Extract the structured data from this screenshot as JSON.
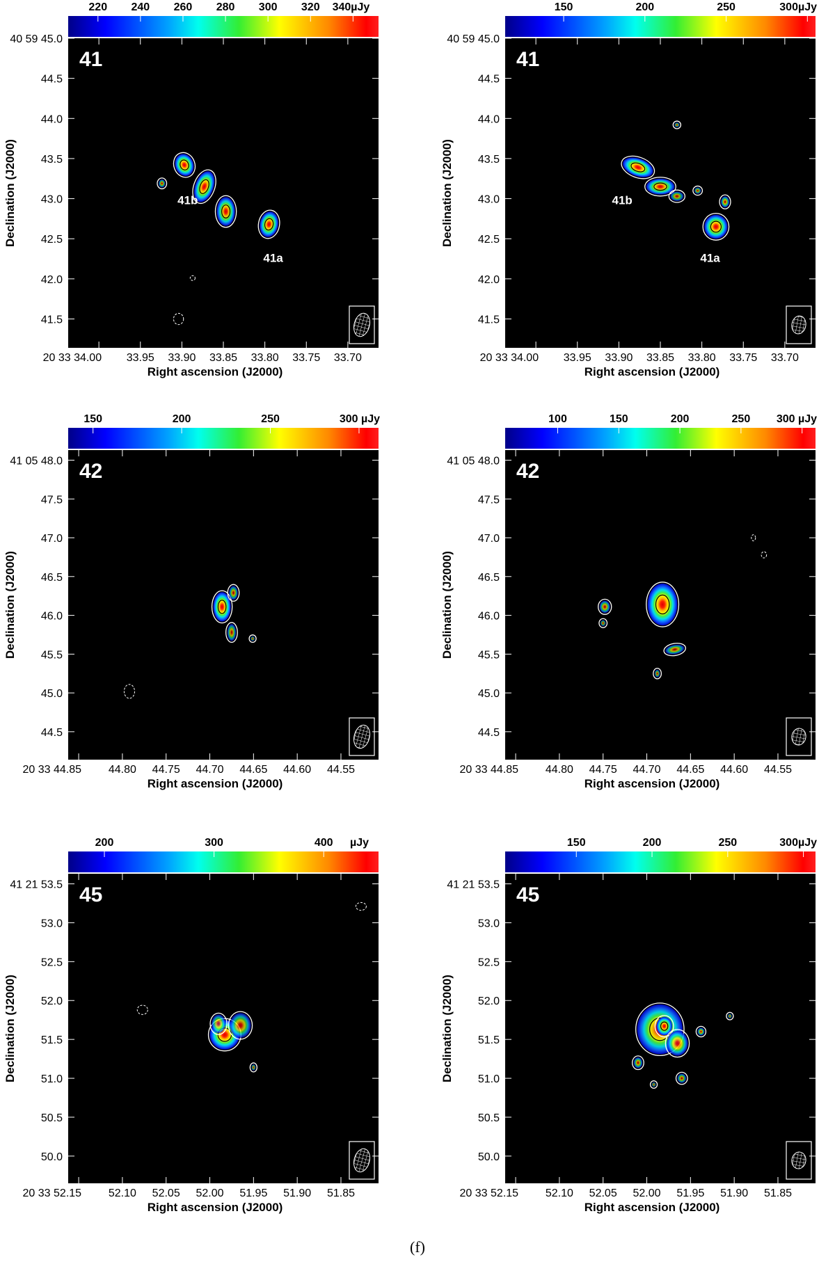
{
  "caption": "(f)",
  "colors": {
    "background": "#000000",
    "contour": "#ffffff",
    "negative_contour": "#ffffff",
    "inner_contour": "#000000"
  },
  "chart_data": [
    {
      "type": "heatmap",
      "panel": "41-left",
      "label": "41",
      "xlabel": "Right ascension (J2000)",
      "ylabel": "Declination (J2000)",
      "x_ticks": [
        "20 33 34.00",
        "33.95",
        "33.90",
        "33.85",
        "33.80",
        "33.75",
        "33.70"
      ],
      "x_values": [
        34.0,
        33.95,
        33.9,
        33.85,
        33.8,
        33.75,
        33.7
      ],
      "xlim": [
        34.037,
        33.663
      ],
      "y_ticks": [
        "40 59 45.0",
        "44.5",
        "44.0",
        "43.5",
        "43.0",
        "42.5",
        "42.0",
        "41.5"
      ],
      "y_values": [
        45.0,
        44.5,
        44.0,
        43.5,
        43.0,
        42.5,
        42.0,
        41.5
      ],
      "ylim": [
        41.14,
        45.0
      ],
      "colorbar": {
        "ticks": [
          "220",
          "240",
          "260",
          "280",
          "300",
          "320",
          "340µJy"
        ],
        "values": [
          220,
          240,
          260,
          280,
          300,
          320,
          340
        ],
        "range": [
          206,
          352
        ]
      },
      "sources": [
        {
          "ra": 33.897,
          "dec": 43.42,
          "rx": 0.011,
          "ry": 0.14,
          "peak": 0.97,
          "rot": -20
        },
        {
          "ra": 33.873,
          "dec": 43.15,
          "rx": 0.011,
          "ry": 0.2,
          "peak": 0.93,
          "rot": 20
        },
        {
          "ra": 33.847,
          "dec": 42.84,
          "rx": 0.011,
          "ry": 0.18,
          "peak": 0.85,
          "rot": 0
        },
        {
          "ra": 33.795,
          "dec": 42.68,
          "rx": 0.011,
          "ry": 0.16,
          "peak": 0.92,
          "rot": 10
        },
        {
          "ra": 33.924,
          "dec": 43.19,
          "rx": 0.004,
          "ry": 0.05,
          "peak": 0.35,
          "rot": 0
        }
      ],
      "annotations": [
        {
          "text": "41b",
          "ra": 33.893,
          "dec": 42.93
        },
        {
          "text": "41a",
          "ra": 33.79,
          "dec": 42.21
        }
      ],
      "negative_contours": [
        {
          "ra": 33.904,
          "dec": 41.5,
          "rx": 0.006,
          "ry": 0.07
        },
        {
          "ra": 33.887,
          "dec": 42.01,
          "rx": 0.003,
          "ry": 0.03
        }
      ],
      "beam": {
        "rx": 11,
        "ry": 17,
        "rot": 15
      }
    },
    {
      "type": "heatmap",
      "panel": "41-right",
      "label": "41",
      "xlabel": "Right ascension (J2000)",
      "ylabel": "Declination (J2000)",
      "x_ticks": [
        "20 33 34.00",
        "33.95",
        "33.90",
        "33.85",
        "33.80",
        "33.75",
        "33.70"
      ],
      "x_values": [
        34.0,
        33.95,
        33.9,
        33.85,
        33.8,
        33.75,
        33.7
      ],
      "xlim": [
        34.037,
        33.663
      ],
      "y_ticks": [
        "40 59 45.0",
        "44.5",
        "44.0",
        "43.5",
        "43.0",
        "42.5",
        "42.0",
        "41.5"
      ],
      "y_values": [
        45.0,
        44.5,
        44.0,
        43.5,
        43.0,
        42.5,
        42.0,
        41.5
      ],
      "ylim": [
        41.14,
        45.0
      ],
      "colorbar": {
        "ticks": [
          "150",
          "200",
          "250",
          "300µJy"
        ],
        "values": [
          150,
          200,
          250,
          300
        ],
        "range": [
          114,
          305
        ]
      },
      "sources": [
        {
          "ra": 33.877,
          "dec": 43.39,
          "rx": 0.019,
          "ry": 0.11,
          "peak": 1.0,
          "rot": 20
        },
        {
          "ra": 33.85,
          "dec": 43.15,
          "rx": 0.017,
          "ry": 0.1,
          "peak": 0.85,
          "rot": 0
        },
        {
          "ra": 33.83,
          "dec": 43.03,
          "rx": 0.008,
          "ry": 0.06,
          "peak": 0.32,
          "rot": 0
        },
        {
          "ra": 33.783,
          "dec": 42.65,
          "rx": 0.014,
          "ry": 0.15,
          "peak": 0.95,
          "rot": 0
        },
        {
          "ra": 33.772,
          "dec": 42.96,
          "rx": 0.005,
          "ry": 0.07,
          "peak": 0.5,
          "rot": 0
        },
        {
          "ra": 33.805,
          "dec": 43.1,
          "rx": 0.004,
          "ry": 0.04,
          "peak": 0.3,
          "rot": 0
        },
        {
          "ra": 33.83,
          "dec": 43.92,
          "rx": 0.003,
          "ry": 0.03,
          "peak": 0.3,
          "rot": 0
        }
      ],
      "annotations": [
        {
          "text": "41b",
          "ra": 33.896,
          "dec": 42.93
        },
        {
          "text": "41a",
          "ra": 33.79,
          "dec": 42.21
        }
      ],
      "negative_contours": [],
      "beam": {
        "rx": 10,
        "ry": 13,
        "rot": 10
      }
    },
    {
      "type": "heatmap",
      "panel": "42-left",
      "label": "42",
      "xlabel": "Right ascension (J2000)",
      "ylabel": "Declination (J2000)",
      "x_ticks": [
        "20 33 44.85",
        "44.80",
        "44.75",
        "44.70",
        "44.65",
        "44.60",
        "44.55"
      ],
      "x_values": [
        44.85,
        44.8,
        44.75,
        44.7,
        44.65,
        44.6,
        44.55
      ],
      "xlim": [
        44.862,
        44.507
      ],
      "y_ticks": [
        "41 05 48.0",
        "47.5",
        "47.0",
        "46.5",
        "46.0",
        "45.5",
        "45.0",
        "44.5"
      ],
      "y_values": [
        48.0,
        47.5,
        47.0,
        46.5,
        46.0,
        45.5,
        45.0,
        44.5
      ],
      "ylim": [
        44.14,
        48.13
      ],
      "colorbar": {
        "ticks": [
          "150",
          "200",
          "250",
          "300 µJy"
        ],
        "values": [
          150,
          200,
          250,
          300
        ],
        "range": [
          136,
          311
        ]
      },
      "sources": [
        {
          "ra": 44.686,
          "dec": 46.11,
          "rx": 0.01,
          "ry": 0.19,
          "peak": 1.0,
          "rot": 0
        },
        {
          "ra": 44.673,
          "dec": 46.29,
          "rx": 0.005,
          "ry": 0.09,
          "peak": 0.35,
          "rot": 0
        },
        {
          "ra": 44.675,
          "dec": 45.78,
          "rx": 0.005,
          "ry": 0.11,
          "peak": 0.35,
          "rot": 0
        },
        {
          "ra": 44.651,
          "dec": 45.7,
          "rx": 0.002,
          "ry": 0.03,
          "peak": 0.2,
          "rot": 0
        }
      ],
      "annotations": [],
      "negative_contours": [
        {
          "ra": 44.792,
          "dec": 45.02,
          "rx": 0.006,
          "ry": 0.09
        }
      ],
      "beam": {
        "rx": 11,
        "ry": 17,
        "rot": 15
      }
    },
    {
      "type": "heatmap",
      "panel": "42-right",
      "label": "42",
      "xlabel": "Right ascension (J2000)",
      "ylabel": "Declination (J2000)",
      "x_ticks": [
        "20 33 44.85",
        "44.80",
        "44.75",
        "44.70",
        "44.65",
        "44.60",
        "44.55"
      ],
      "x_values": [
        44.85,
        44.8,
        44.75,
        44.7,
        44.65,
        44.6,
        44.55
      ],
      "xlim": [
        44.862,
        44.507
      ],
      "y_ticks": [
        "41 05 48.0",
        "47.5",
        "47.0",
        "46.5",
        "46.0",
        "45.5",
        "45.0",
        "44.5"
      ],
      "y_values": [
        48.0,
        47.5,
        47.0,
        46.5,
        46.0,
        45.5,
        45.0,
        44.5
      ],
      "ylim": [
        44.14,
        48.13
      ],
      "colorbar": {
        "ticks": [
          "100",
          "150",
          "200",
          "250",
          "300 µJy"
        ],
        "values": [
          100,
          150,
          200,
          250,
          300
        ],
        "range": [
          57,
          311
        ]
      },
      "sources": [
        {
          "ra": 44.682,
          "dec": 46.14,
          "rx": 0.017,
          "ry": 0.27,
          "peak": 1.0,
          "rot": 0
        },
        {
          "ra": 44.748,
          "dec": 46.11,
          "rx": 0.006,
          "ry": 0.08,
          "peak": 0.42,
          "rot": 0
        },
        {
          "ra": 44.75,
          "dec": 45.9,
          "rx": 0.003,
          "ry": 0.04,
          "peak": 0.2,
          "rot": 0
        },
        {
          "ra": 44.668,
          "dec": 45.56,
          "rx": 0.011,
          "ry": 0.06,
          "peak": 0.38,
          "rot": -10
        },
        {
          "ra": 44.688,
          "dec": 45.25,
          "rx": 0.003,
          "ry": 0.05,
          "peak": 0.25,
          "rot": 0
        }
      ],
      "annotations": [],
      "negative_contours": [
        {
          "ra": 44.578,
          "dec": 47.0,
          "rx": 0.002,
          "ry": 0.04
        },
        {
          "ra": 44.566,
          "dec": 46.78,
          "rx": 0.003,
          "ry": 0.04
        }
      ],
      "beam": {
        "rx": 10,
        "ry": 12,
        "rot": 10
      }
    },
    {
      "type": "heatmap",
      "panel": "45-left",
      "label": "45",
      "xlabel": "Right ascension (J2000)",
      "ylabel": "Declination (J2000)",
      "x_ticks": [
        "20 33 52.15",
        "52.10",
        "52.05",
        "52.00",
        "51.95",
        "51.90",
        "51.85"
      ],
      "x_values": [
        52.15,
        52.1,
        52.05,
        52.0,
        51.95,
        51.9,
        51.85
      ],
      "xlim": [
        52.162,
        51.807
      ],
      "y_ticks": [
        "41 21 53.5",
        "53.0",
        "52.5",
        "52.0",
        "51.5",
        "51.0",
        "50.5",
        "50.0"
      ],
      "y_values": [
        53.5,
        53.0,
        52.5,
        52.0,
        51.5,
        51.0,
        50.5,
        50.0
      ],
      "ylim": [
        49.65,
        53.63
      ],
      "colorbar": {
        "ticks": [
          "200",
          "300",
          "400",
          "µJy"
        ],
        "values": [
          200,
          300,
          400
        ],
        "range": [
          167,
          450
        ]
      },
      "sources": [
        {
          "ra": 51.983,
          "dec": 51.56,
          "rx": 0.017,
          "ry": 0.19,
          "peak": 1.0,
          "rot": 0
        },
        {
          "ra": 51.965,
          "dec": 51.68,
          "rx": 0.012,
          "ry": 0.16,
          "peak": 0.45,
          "rot": 0
        },
        {
          "ra": 51.99,
          "dec": 51.7,
          "rx": 0.008,
          "ry": 0.12,
          "peak": 0.4,
          "rot": 0
        },
        {
          "ra": 51.95,
          "dec": 51.14,
          "rx": 0.002,
          "ry": 0.04,
          "peak": 0.25,
          "rot": 0
        }
      ],
      "annotations": [],
      "negative_contours": [
        {
          "ra": 52.077,
          "dec": 51.88,
          "rx": 0.006,
          "ry": 0.06
        },
        {
          "ra": 51.827,
          "dec": 53.21,
          "rx": 0.006,
          "ry": 0.05
        }
      ],
      "beam": {
        "rx": 11,
        "ry": 17,
        "rot": 15
      }
    },
    {
      "type": "heatmap",
      "panel": "45-right",
      "label": "45",
      "xlabel": "Right ascension (J2000)",
      "ylabel": "Declination (J2000)",
      "x_ticks": [
        "20 33 52.15",
        "52.10",
        "52.05",
        "52.00",
        "51.95",
        "51.90",
        "51.85"
      ],
      "x_values": [
        52.15,
        52.1,
        52.05,
        52.0,
        51.95,
        51.9,
        51.85
      ],
      "xlim": [
        52.162,
        51.807
      ],
      "y_ticks": [
        "41 21 53.5",
        "53.0",
        "52.5",
        "52.0",
        "51.5",
        "51.0",
        "50.5",
        "50.0"
      ],
      "y_values": [
        53.5,
        53.0,
        52.5,
        52.0,
        51.5,
        51.0,
        50.5,
        50.0
      ],
      "ylim": [
        49.65,
        53.63
      ],
      "colorbar": {
        "ticks": [
          "150",
          "200",
          "250",
          "300µJy"
        ],
        "values": [
          150,
          200,
          250,
          300
        ],
        "range": [
          103,
          308
        ]
      },
      "sources": [
        {
          "ra": 51.985,
          "dec": 51.63,
          "rx": 0.026,
          "ry": 0.32,
          "peak": 0.85,
          "rot": 0
        },
        {
          "ra": 51.98,
          "dec": 51.67,
          "rx": 0.009,
          "ry": 0.12,
          "peak": 1.0,
          "rot": 0
        },
        {
          "ra": 51.965,
          "dec": 51.45,
          "rx": 0.012,
          "ry": 0.16,
          "peak": 0.7,
          "rot": 0
        },
        {
          "ra": 52.01,
          "dec": 51.2,
          "rx": 0.005,
          "ry": 0.07,
          "peak": 0.4,
          "rot": 0
        },
        {
          "ra": 51.938,
          "dec": 51.6,
          "rx": 0.004,
          "ry": 0.05,
          "peak": 0.45,
          "rot": 0
        },
        {
          "ra": 51.96,
          "dec": 51.0,
          "rx": 0.005,
          "ry": 0.06,
          "peak": 0.35,
          "rot": 0
        },
        {
          "ra": 51.992,
          "dec": 50.92,
          "rx": 0.002,
          "ry": 0.03,
          "peak": 0.2,
          "rot": 0
        },
        {
          "ra": 51.905,
          "dec": 51.8,
          "rx": 0.002,
          "ry": 0.03,
          "peak": 0.25,
          "rot": 0
        }
      ],
      "annotations": [],
      "negative_contours": [],
      "beam": {
        "rx": 10,
        "ry": 12,
        "rot": 10
      }
    }
  ]
}
